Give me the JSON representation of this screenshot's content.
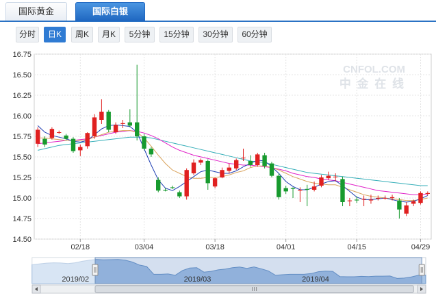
{
  "tabs": [
    {
      "label": "国际黄金",
      "active": false
    },
    {
      "label": "国际白银",
      "active": true
    }
  ],
  "periods": [
    {
      "label": "分时",
      "active": false
    },
    {
      "label": "日K",
      "active": true
    },
    {
      "label": "周K",
      "active": false
    },
    {
      "label": "月K",
      "active": false
    },
    {
      "label": "5分钟",
      "active": false
    },
    {
      "label": "15分钟",
      "active": false
    },
    {
      "label": "30分钟",
      "active": false
    },
    {
      "label": "60分钟",
      "active": false
    }
  ],
  "watermark": {
    "line1": "CNFOL.COM",
    "line2": "中 金 在 线"
  },
  "colors": {
    "up": "#e02020",
    "down": "#179a2e",
    "ma5": "#1f3fb3",
    "ma10": "#d9a25a",
    "ma20": "#e020c8",
    "ma30": "#34aeb8",
    "accent": "#2a72c4"
  },
  "chart_data": {
    "type": "candlestick",
    "y_ticks": [
      "16.75",
      "16.50",
      "16.25",
      "16.00",
      "15.75",
      "15.50",
      "15.25",
      "15.00",
      "14.75",
      "14.50"
    ],
    "ylim": [
      14.5,
      16.75
    ],
    "x_ticks": [
      {
        "label": "02/18",
        "index": 6
      },
      {
        "label": "03/04",
        "index": 15
      },
      {
        "label": "03/18",
        "index": 25
      },
      {
        "label": "04/01",
        "index": 35
      },
      {
        "label": "04/15",
        "index": 45
      },
      {
        "label": "04/29",
        "index": 54
      }
    ],
    "candles": [
      [
        15.66,
        15.83,
        15.86,
        15.62
      ],
      [
        15.72,
        15.65,
        15.75,
        15.62
      ],
      [
        15.73,
        15.84,
        15.86,
        15.71
      ],
      [
        15.8,
        15.8,
        15.82,
        15.78
      ],
      [
        15.76,
        15.72,
        15.78,
        15.7
      ],
      [
        15.72,
        15.57,
        15.74,
        15.55
      ],
      [
        15.58,
        15.62,
        15.65,
        15.51
      ],
      [
        15.63,
        15.79,
        15.8,
        15.6
      ],
      [
        15.75,
        15.98,
        16.02,
        15.72
      ],
      [
        15.95,
        16.05,
        16.2,
        15.9
      ],
      [
        16.05,
        15.83,
        16.07,
        15.8
      ],
      [
        15.8,
        15.89,
        15.92,
        15.78
      ],
      [
        15.9,
        15.91,
        15.95,
        15.85
      ],
      [
        15.92,
        15.88,
        16.08,
        15.86
      ],
      [
        15.92,
        15.75,
        16.62,
        15.7
      ],
      [
        15.75,
        15.6,
        15.78,
        15.58
      ],
      [
        15.6,
        15.53,
        15.62,
        15.5
      ],
      [
        15.22,
        15.09,
        15.25,
        15.07
      ],
      [
        15.1,
        15.09,
        15.12,
        15.08
      ],
      [
        15.13,
        15.12,
        15.15,
        15.11
      ],
      [
        15.07,
        15.02,
        15.09,
        15.0
      ],
      [
        15.02,
        15.34,
        15.36,
        14.98
      ],
      [
        15.3,
        15.43,
        15.47,
        15.28
      ],
      [
        15.43,
        15.46,
        15.48,
        15.4
      ],
      [
        15.45,
        15.18,
        15.47,
        15.1
      ],
      [
        15.14,
        15.24,
        15.25,
        15.12
      ],
      [
        15.25,
        15.34,
        15.37,
        15.24
      ],
      [
        15.33,
        15.37,
        15.42,
        15.3
      ],
      [
        15.36,
        15.46,
        15.48,
        15.34
      ],
      [
        15.49,
        15.49,
        15.6,
        15.45
      ],
      [
        15.45,
        15.4,
        15.52,
        15.38
      ],
      [
        15.4,
        15.53,
        15.55,
        15.38
      ],
      [
        15.52,
        15.39,
        15.55,
        15.36
      ],
      [
        15.42,
        15.27,
        15.44,
        15.25
      ],
      [
        15.27,
        15.01,
        15.3,
        14.98
      ],
      [
        15.12,
        15.08,
        15.15,
        15.05
      ],
      [
        15.12,
        15.11,
        15.13,
        15.0
      ],
      [
        15.09,
        15.1,
        15.13,
        14.95
      ],
      [
        15.11,
        15.1,
        15.16,
        14.9
      ],
      [
        15.1,
        15.14,
        15.2,
        15.08
      ],
      [
        15.15,
        15.25,
        15.28,
        15.13
      ],
      [
        15.24,
        15.27,
        15.32,
        15.22
      ],
      [
        15.26,
        15.26,
        15.3,
        15.2
      ],
      [
        15.23,
        14.95,
        15.26,
        14.9
      ],
      [
        14.96,
        14.97,
        15.0,
        14.9
      ],
      [
        14.98,
        14.97,
        15.02,
        14.94
      ],
      [
        14.98,
        14.99,
        15.03,
        14.9
      ],
      [
        14.97,
        14.98,
        15.04,
        14.93
      ],
      [
        15.0,
        15.0,
        15.03,
        14.97
      ],
      [
        15.0,
        15.0,
        15.03,
        14.98
      ],
      [
        15.0,
        15.01,
        15.04,
        14.97
      ],
      [
        14.97,
        14.86,
        15.0,
        14.75
      ],
      [
        14.81,
        14.91,
        14.95,
        14.78
      ],
      [
        14.93,
        14.96,
        14.98,
        14.9
      ],
      [
        14.94,
        15.06,
        15.08,
        14.92
      ],
      [
        15.05,
        15.06,
        15.08,
        15.03
      ]
    ],
    "ma_lines": {
      "ma5": [
        15.88,
        15.8,
        15.76,
        15.74,
        15.72,
        15.69,
        15.68,
        15.7,
        15.77,
        15.84,
        15.88,
        15.89,
        15.88,
        15.87,
        15.8,
        15.6,
        15.4,
        15.22,
        15.12,
        15.09,
        15.14,
        15.2,
        15.26,
        15.32,
        15.34,
        15.32,
        15.3,
        15.3,
        15.33,
        15.38,
        15.42,
        15.46,
        15.45,
        15.38,
        15.3,
        15.2,
        15.14,
        15.1,
        15.1,
        15.13,
        15.17,
        15.2,
        15.21,
        15.15,
        15.08,
        15.01,
        14.98,
        14.98,
        14.99,
        15.0,
        14.98,
        14.96,
        14.95,
        14.96,
        14.99,
        15.03
      ],
      "ma10": [
        15.73,
        15.73,
        15.72,
        15.71,
        15.7,
        15.7,
        15.7,
        15.71,
        15.74,
        15.77,
        15.8,
        15.81,
        15.82,
        15.82,
        15.8,
        15.73,
        15.63,
        15.52,
        15.42,
        15.34,
        15.3,
        15.26,
        15.24,
        15.24,
        15.25,
        15.25,
        15.26,
        15.28,
        15.31,
        15.33,
        15.37,
        15.39,
        15.39,
        15.37,
        15.34,
        15.3,
        15.26,
        15.23,
        15.2,
        15.18,
        15.17,
        15.16,
        15.16,
        15.13,
        15.1,
        15.07,
        15.04,
        15.02,
        15.01,
        15.0,
        14.99,
        14.98,
        14.97,
        14.97,
        14.98,
        15.0
      ],
      "ma20": [
        15.66,
        15.67,
        15.68,
        15.69,
        15.7,
        15.7,
        15.71,
        15.72,
        15.74,
        15.76,
        15.78,
        15.8,
        15.81,
        15.82,
        15.81,
        15.79,
        15.76,
        15.72,
        15.67,
        15.62,
        15.58,
        15.55,
        15.52,
        15.5,
        15.48,
        15.46,
        15.44,
        15.42,
        15.41,
        15.4,
        15.4,
        15.39,
        15.38,
        15.37,
        15.35,
        15.33,
        15.3,
        15.28,
        15.26,
        15.25,
        15.23,
        15.22,
        15.21,
        15.19,
        15.17,
        15.15,
        15.13,
        15.11,
        15.09,
        15.08,
        15.07,
        15.06,
        15.05,
        15.04,
        15.04,
        15.05
      ],
      "ma30": [
        15.58,
        15.6,
        15.62,
        15.64,
        15.65,
        15.66,
        15.67,
        15.68,
        15.69,
        15.7,
        15.71,
        15.72,
        15.73,
        15.74,
        15.74,
        15.74,
        15.73,
        15.71,
        15.69,
        15.67,
        15.65,
        15.63,
        15.61,
        15.59,
        15.57,
        15.55,
        15.53,
        15.51,
        15.49,
        15.47,
        15.45,
        15.44,
        15.43,
        15.41,
        15.39,
        15.37,
        15.35,
        15.33,
        15.31,
        15.3,
        15.29,
        15.28,
        15.27,
        15.26,
        15.25,
        15.24,
        15.23,
        15.22,
        15.21,
        15.2,
        15.19,
        15.18,
        15.17,
        15.16,
        15.15,
        15.15
      ]
    }
  },
  "navigator": {
    "labels": [
      {
        "text": "2019/02",
        "pos": 0.11
      },
      {
        "text": "2019/03",
        "pos": 0.42
      },
      {
        "text": "2019/04",
        "pos": 0.72
      }
    ],
    "selection": [
      0.16,
      0.99
    ],
    "series": [
      15.62,
      15.66,
      15.7,
      15.72,
      15.71,
      15.68,
      15.72,
      15.8,
      15.86,
      15.9,
      15.88,
      15.89,
      15.9,
      15.86,
      15.76,
      15.6,
      15.52,
      15.1,
      15.1,
      15.12,
      15.05,
      15.3,
      15.44,
      15.46,
      15.22,
      15.26,
      15.34,
      15.38,
      15.46,
      15.49,
      15.42,
      15.5,
      15.4,
      15.28,
      15.05,
      15.08,
      15.1,
      15.1,
      15.1,
      15.14,
      15.24,
      15.27,
      15.26,
      14.98,
      14.97,
      14.97,
      14.99,
      14.98,
      15.0,
      15.0,
      15.01,
      14.88,
      14.9,
      14.96,
      15.05,
      15.06
    ]
  }
}
